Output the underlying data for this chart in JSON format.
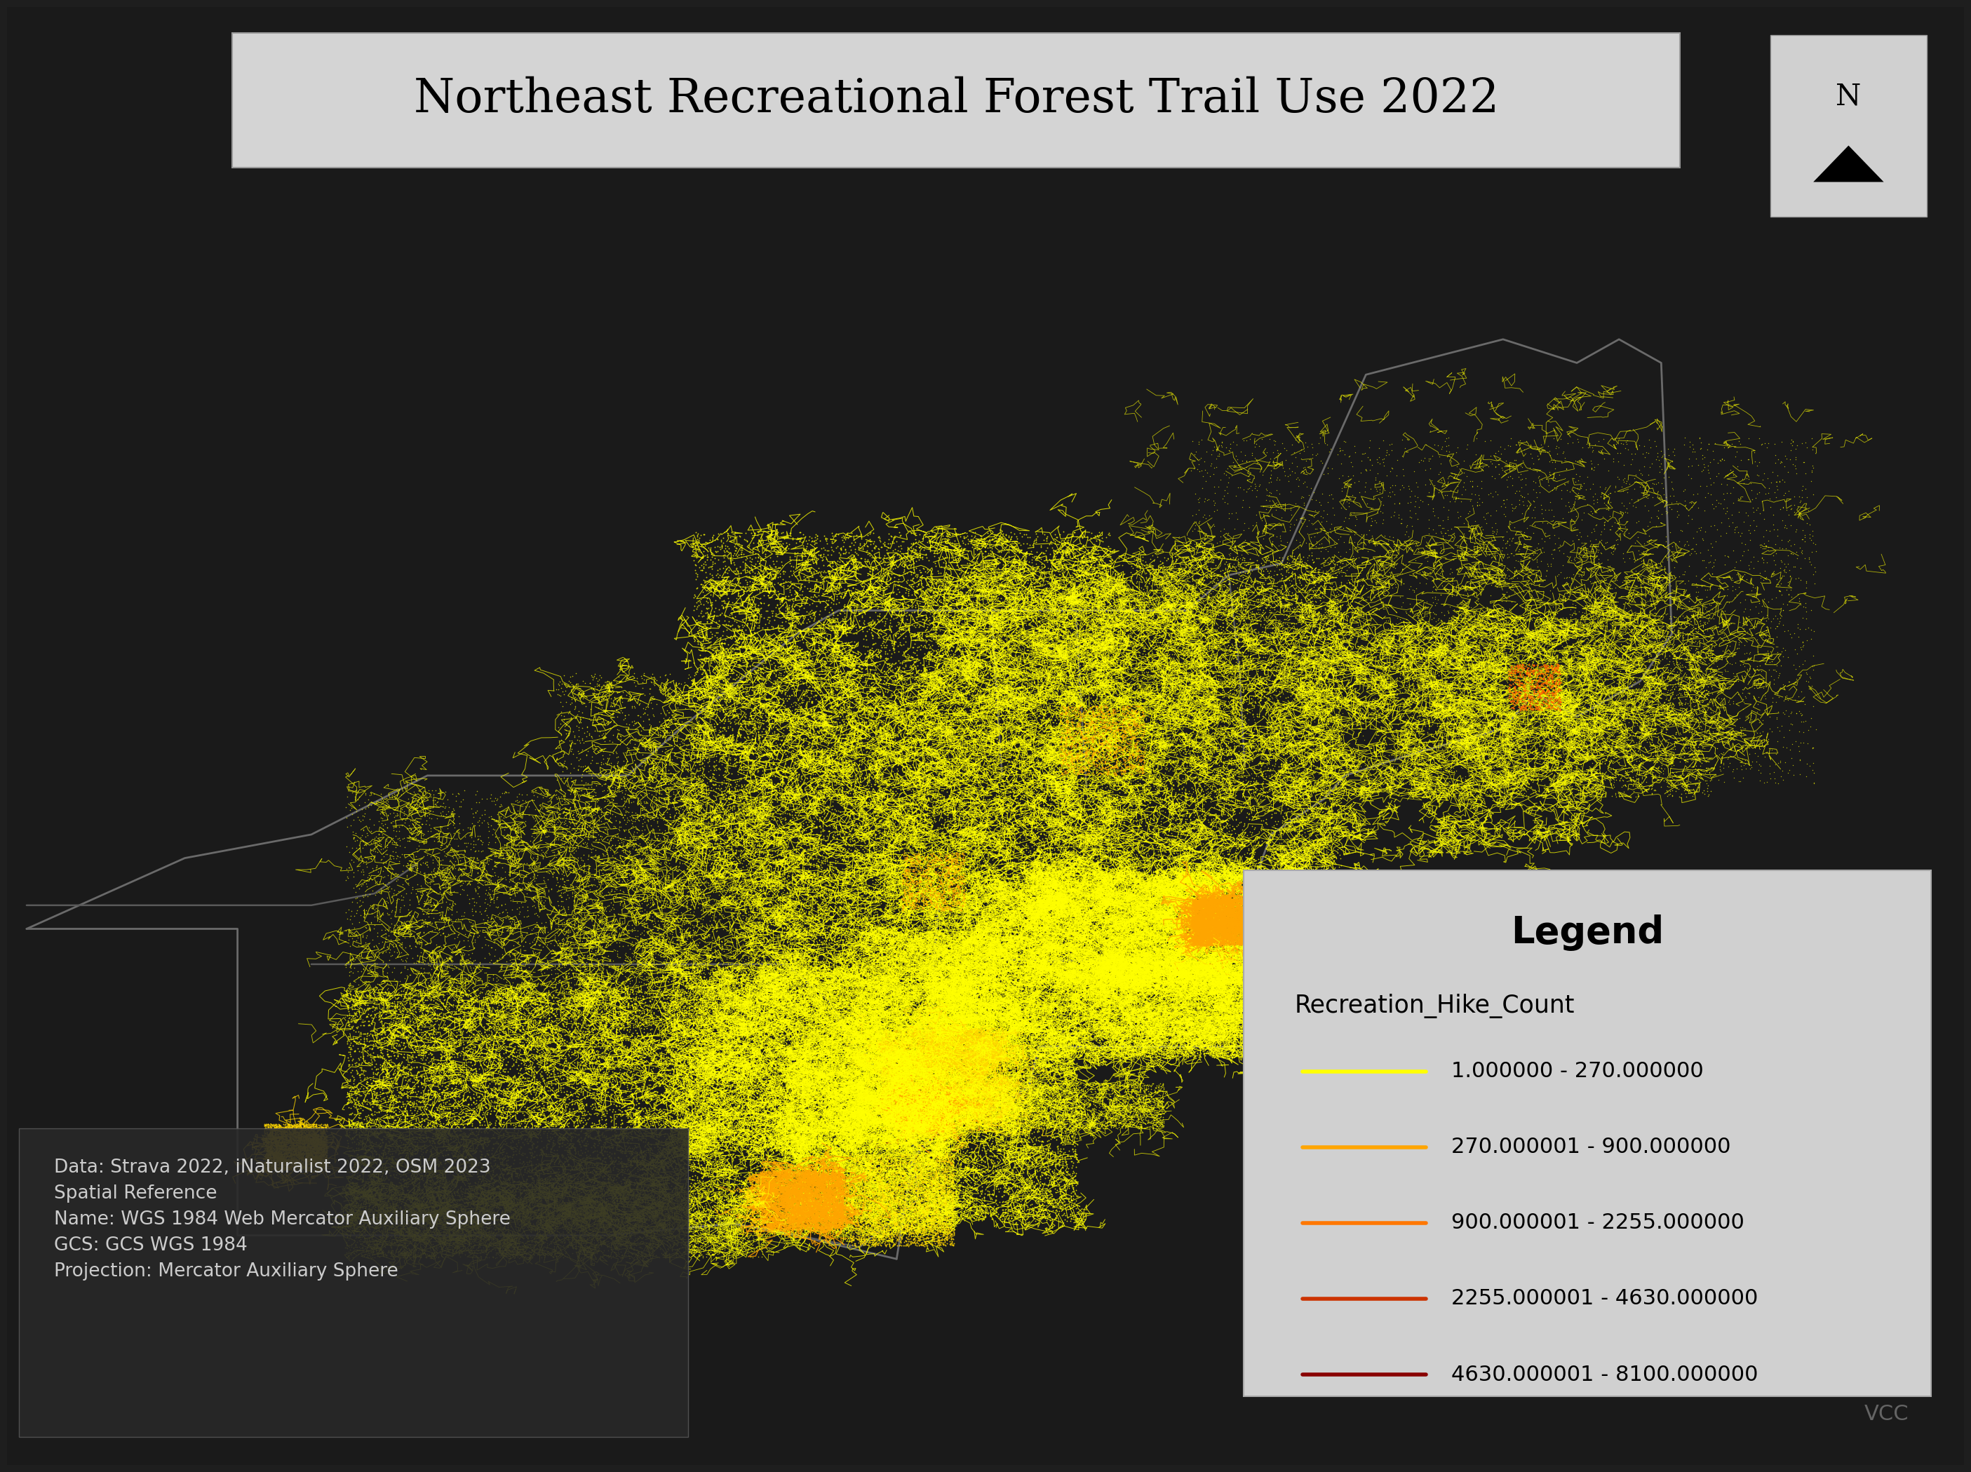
{
  "title": "Northeast Recreational Forest Trail Use 2022",
  "background_color": "#1e1e1e",
  "map_background": "#1a1a1a",
  "title_box_color": "#d8d8d8",
  "title_font_size": 48,
  "title_fontweight": "normal",
  "legend_title": "Legend",
  "legend_subtitle": "Recreation_Hike_Count",
  "legend_entries": [
    {
      "label": "1.000000 - 270.000000",
      "color": "#ffff00"
    },
    {
      "label": "270.000001 - 900.000000",
      "color": "#ffa500"
    },
    {
      "label": "900.000001 - 2255.000000",
      "color": "#ff7700"
    },
    {
      "label": "2255.000001 - 4630.000000",
      "color": "#cc3300"
    },
    {
      "label": "4630.000001 - 8100.000000",
      "color": "#880000"
    }
  ],
  "source_text": "Data: Strava 2022, iNaturalist 2022, OSM 2023\nSpatial Reference\nName: WGS 1984 Web Mercator Auxiliary Sphere\nGCS: GCS WGS 1984\nProjection: Mercator Auxiliary Sphere",
  "watermark": "VCC",
  "lon_min": -82.5,
  "lon_max": -64.5,
  "lat_min": 38.0,
  "lat_max": 49.5
}
